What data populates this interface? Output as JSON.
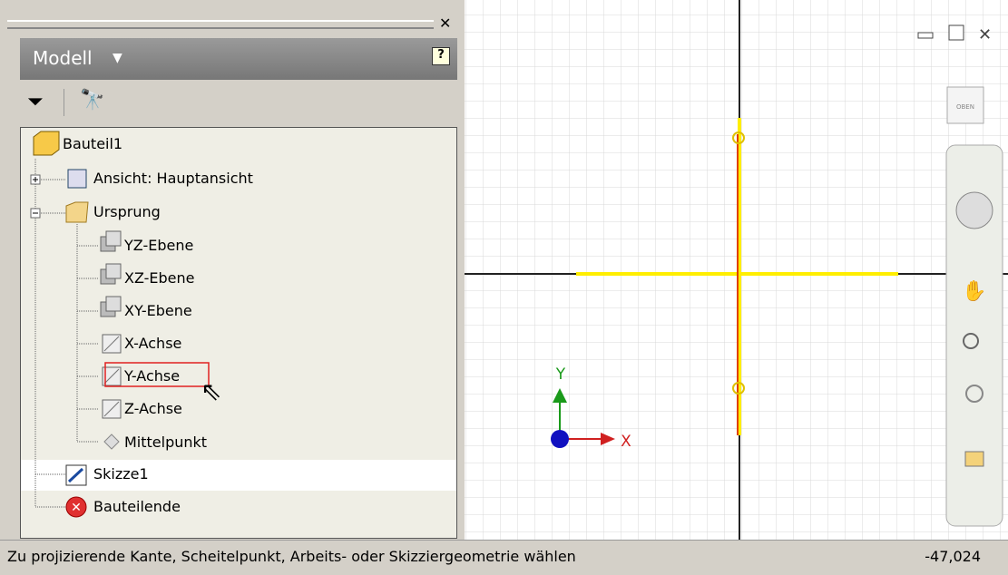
{
  "panel": {
    "title": "Modell"
  },
  "tree": {
    "nodes": [
      {
        "label": "Bauteil1"
      },
      {
        "label": "Ansicht: Hauptansicht"
      },
      {
        "label": "Ursprung"
      },
      {
        "label": "YZ-Ebene"
      },
      {
        "label": "XZ-Ebene"
      },
      {
        "label": "XY-Ebene"
      },
      {
        "label": "X-Achse"
      },
      {
        "label": "Y-Achse"
      },
      {
        "label": "Z-Achse"
      },
      {
        "label": "Mittelpunkt"
      },
      {
        "label": "Skizze1"
      },
      {
        "label": "Bauteilende"
      }
    ]
  },
  "viewport": {
    "viewcube": "OBEN",
    "x_axis": "X",
    "y_axis": "Y"
  },
  "status": {
    "text": "Zu projizierende Kante, Scheitelpunkt, Arbeits- oder Skizziergeometrie wählen",
    "value": "-47,024"
  }
}
